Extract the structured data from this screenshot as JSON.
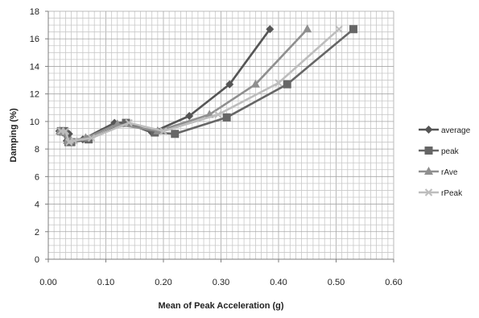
{
  "chart_data": {
    "type": "line",
    "title": "",
    "xlabel": "Mean of Peak Acceleration (g)",
    "ylabel": "Damping (%)",
    "xlim": [
      0,
      0.6
    ],
    "ylim": [
      0,
      18
    ],
    "x_ticks": [
      "0.00",
      "0.10",
      "0.20",
      "0.30",
      "0.40",
      "0.50",
      "0.60"
    ],
    "y_ticks": [
      "0",
      "2",
      "4",
      "6",
      "8",
      "10",
      "12",
      "14",
      "16",
      "18"
    ],
    "grid": true,
    "legend_position": "right",
    "series": [
      {
        "name": "average",
        "color": "#555555",
        "marker": "diamond",
        "points": [
          [
            0.019,
            9.3
          ],
          [
            0.025,
            9.2
          ],
          [
            0.032,
            8.6
          ],
          [
            0.036,
            9.1
          ],
          [
            0.04,
            8.6
          ],
          [
            0.06,
            8.7
          ],
          [
            0.115,
            9.9
          ],
          [
            0.135,
            9.9
          ],
          [
            0.18,
            9.2
          ],
          [
            0.245,
            10.4
          ],
          [
            0.315,
            12.7
          ],
          [
            0.385,
            16.7
          ]
        ]
      },
      {
        "name": "peak",
        "color": "#666666",
        "marker": "square",
        "points": [
          [
            0.022,
            9.3
          ],
          [
            0.028,
            9.3
          ],
          [
            0.035,
            8.5
          ],
          [
            0.04,
            8.5
          ],
          [
            0.07,
            8.7
          ],
          [
            0.135,
            9.9
          ],
          [
            0.185,
            9.2
          ],
          [
            0.22,
            9.1
          ],
          [
            0.31,
            10.3
          ],
          [
            0.415,
            12.7
          ],
          [
            0.53,
            16.7
          ]
        ]
      },
      {
        "name": "rAve",
        "color": "#8f8f8f",
        "marker": "triangle",
        "points": [
          [
            0.02,
            9.3
          ],
          [
            0.026,
            9.2
          ],
          [
            0.033,
            8.6
          ],
          [
            0.038,
            8.6
          ],
          [
            0.065,
            8.8
          ],
          [
            0.12,
            9.8
          ],
          [
            0.19,
            9.3
          ],
          [
            0.28,
            10.5
          ],
          [
            0.36,
            12.7
          ],
          [
            0.45,
            16.7
          ]
        ]
      },
      {
        "name": "rPeak",
        "color": "#bdbdbd",
        "marker": "x",
        "points": [
          [
            0.022,
            9.3
          ],
          [
            0.03,
            9.3
          ],
          [
            0.036,
            8.5
          ],
          [
            0.045,
            8.6
          ],
          [
            0.075,
            8.8
          ],
          [
            0.14,
            9.9
          ],
          [
            0.2,
            9.3
          ],
          [
            0.295,
            10.5
          ],
          [
            0.4,
            12.8
          ],
          [
            0.505,
            16.7
          ]
        ]
      }
    ]
  }
}
